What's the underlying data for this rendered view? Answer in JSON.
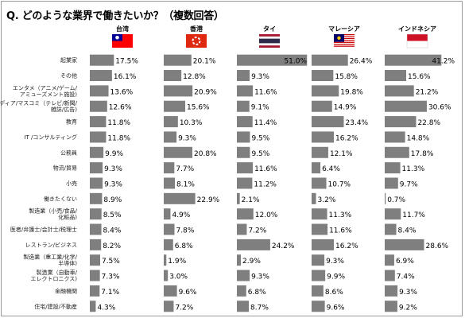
{
  "title": "Q. どのような業界で働きたいか？（複数回答）",
  "chart_data": {
    "type": "bar",
    "orientation": "horizontal",
    "title": "Q. どのような業界で働きたいか？（複数回答）",
    "value_unit": "%",
    "bar_color": "#7f7f7f",
    "categories": [
      [
        "起業家"
      ],
      [
        "その他"
      ],
      [
        "エンタメ（アニメ/ゲーム/",
        "アミューズメント施設)"
      ],
      [
        "メディア/マスコミ（テレビ/新聞/",
        "雑誌/広告)"
      ],
      [
        "教育"
      ],
      [
        "IT /コンサルティング"
      ],
      [
        "公務員"
      ],
      [
        "物流/貿易"
      ],
      [
        "小売"
      ],
      [
        "働きたくない"
      ],
      [
        "製造業（小売/食品/",
        "化粧品)"
      ],
      [
        "医者/弁護士/会計士/税理士"
      ],
      [
        "レストラン/ビジネス"
      ],
      [
        "製造業（重工業/化学/",
        "半導体)"
      ],
      [
        "製造業（自動車/",
        "エレクトロニクス)"
      ],
      [
        "金融機関"
      ],
      [
        "住宅/建設/不動産"
      ]
    ],
    "series": [
      {
        "name": "台湾",
        "flag": "taiwan",
        "values": [
          17.5,
          16.1,
          13.6,
          12.6,
          11.8,
          11.8,
          9.9,
          9.3,
          9.3,
          8.9,
          8.5,
          8.4,
          8.2,
          7.5,
          7.3,
          7.1,
          4.3
        ],
        "labels": [
          "17.5%",
          "16.1%",
          "13.6%",
          "12.6%",
          "11.8%",
          "11.8%",
          "9.9%",
          "9.3%",
          "9.3%",
          "8.9%",
          "8.5%",
          "8.4%",
          "8.2%",
          "7.5%",
          "7.3%",
          "7.1%",
          "4.3%"
        ]
      },
      {
        "name": "香港",
        "flag": "hongkong",
        "values": [
          20.1,
          12.8,
          20.9,
          15.6,
          10.3,
          9.3,
          20.8,
          7.7,
          8.1,
          22.9,
          4.9,
          7.8,
          6.8,
          1.9,
          3.0,
          9.6,
          7.2
        ],
        "labels": [
          "20.1%",
          "12.8%",
          "20.9%",
          "15.6%",
          "10.3%",
          "9.3%",
          "20.8%",
          "7.7%",
          "8.1%",
          "22.9%",
          "4.9%",
          "7.8%",
          "6.8%",
          "1.9%",
          "3.0%",
          "9.6%",
          "7.2%"
        ]
      },
      {
        "name": "タイ",
        "flag": "thailand",
        "values": [
          51.0,
          9.3,
          11.6,
          9.1,
          11.4,
          9.5,
          9.5,
          11.6,
          11.2,
          2.1,
          12.0,
          7.2,
          24.2,
          2.9,
          9.3,
          6.8,
          8.7
        ],
        "labels": [
          "51.0%",
          "9.3%",
          "11.6%",
          "9.1%",
          "11.4%",
          "9.5%",
          "9.5%",
          "11.6%",
          "11.2%",
          "2.1%",
          "12.0%",
          "7.2%",
          "24.2%",
          "2.9%",
          "9.3%",
          "6.8%",
          "8.7%"
        ]
      },
      {
        "name": "マレーシア",
        "flag": "malaysia",
        "values": [
          26.4,
          15.8,
          19.8,
          14.9,
          23.4,
          16.2,
          12.1,
          6.4,
          10.7,
          3.2,
          11.3,
          11.6,
          16.2,
          9.3,
          9.9,
          8.6,
          9.6
        ],
        "labels": [
          "26.4%",
          "15.8%",
          "19.8%",
          "14.9%",
          "23.4%",
          "16.2%",
          "12.1%",
          "6.4%",
          "10.7%",
          "3.2%",
          "11.3%",
          "11.6%",
          "16.2%",
          "9.3%",
          "9.9%",
          "8.6%",
          "9.6%"
        ]
      },
      {
        "name": "インドネシア",
        "flag": "indonesia",
        "values": [
          41.2,
          15.6,
          21.2,
          30.6,
          22.8,
          14.8,
          17.8,
          11.3,
          9.7,
          0.7,
          11.7,
          8.4,
          28.6,
          6.9,
          7.4,
          9.3,
          9.2
        ],
        "labels": [
          "41.2%",
          "15.6%",
          "21.2%",
          "30.6%",
          "22.8%",
          "14.8%",
          "17.8%",
          "11.3%",
          "9.7%",
          "0.7%",
          "11.7%",
          "8.4%",
          "28.6%",
          "6.9%",
          "7.4%",
          "9.3%",
          "9.2%"
        ]
      }
    ],
    "grid": false,
    "legend": "none"
  }
}
